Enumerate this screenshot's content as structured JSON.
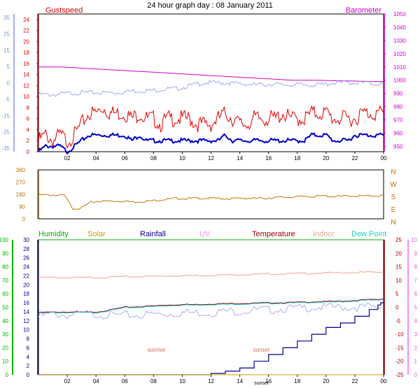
{
  "title": "24 hour graph day : 08 January 2011",
  "x_ticks": [
    "02",
    "04",
    "06",
    "08",
    "10",
    "12",
    "14",
    "16",
    "18",
    "20",
    "22",
    "00"
  ],
  "colors": {
    "gust": "#e00000",
    "wind": "#0000c8",
    "baro": "#cc00cc",
    "temp_outer": "#a0a8f0",
    "dir": "#c87800",
    "humidity": "#00b000",
    "solar": "#c8a000",
    "rainfall": "#00008c",
    "uv": "#ff88ff",
    "temperature": "#a00000",
    "indoor": "#f0a890",
    "dewpoint": "#20d0d0",
    "chill": "#a8b0f0",
    "grid": "#d0d0d0"
  },
  "chart_data": [
    {
      "type": "line",
      "panel": "wind-barometer",
      "legend": {
        "left": "Gustspeed",
        "right": "Barometer"
      },
      "left_axis_outer": {
        "ticks": [
          "35",
          "25",
          "15",
          "5",
          "0",
          "-5",
          "-15",
          "-25",
          "-35"
        ]
      },
      "left_axis_inner": {
        "ticks": [
          "24",
          "22",
          "20",
          "18",
          "16",
          "14",
          "12",
          "10",
          "8",
          "6",
          "4",
          "2",
          "0"
        ],
        "ylim": [
          0,
          25
        ]
      },
      "right_axis": {
        "ticks": [
          "1050",
          "1040",
          "1030",
          "1020",
          "1010",
          "1000",
          "990",
          "980",
          "970",
          "960",
          "950"
        ],
        "ylim": [
          946,
          1050
        ]
      },
      "series": [
        {
          "key": "gust",
          "values": [
            2,
            3,
            2,
            3,
            2,
            3,
            5,
            7,
            7,
            8,
            7,
            7,
            7,
            6,
            7,
            6,
            6,
            5,
            6,
            6,
            6,
            6,
            5,
            5,
            5,
            6,
            7,
            6,
            5,
            5,
            6,
            6,
            6,
            6,
            7,
            6,
            6,
            6,
            7,
            7,
            7,
            6,
            6,
            6,
            6,
            7,
            7,
            7,
            7
          ]
        },
        {
          "key": "wind",
          "values": [
            0,
            1,
            1,
            1,
            0,
            1,
            2,
            3,
            3,
            3,
            3,
            3,
            3,
            2,
            3,
            2,
            2,
            2,
            2,
            2,
            2,
            2,
            2,
            2,
            2,
            2,
            3,
            2,
            2,
            2,
            2,
            2,
            2,
            2,
            2,
            2,
            2,
            2,
            3,
            3,
            3,
            2,
            2,
            2,
            3,
            3,
            3,
            3,
            3
          ]
        },
        {
          "key": "baro",
          "values": [
            1010,
            1010,
            1010,
            1009.5,
            1009,
            1008.5,
            1008,
            1007.5,
            1007,
            1006.5,
            1006,
            1005.5,
            1005,
            1004.5,
            1004,
            1003.5,
            1003,
            1002.5,
            1002,
            1001.5,
            1001,
            1000.5,
            1000,
            1000,
            1000,
            999.8,
            999.6,
            999.4,
            999.2,
            999,
            999
          ]
        },
        {
          "key": "temp_outer",
          "values": [
            -6,
            -6,
            -6,
            -5.5,
            -5.2,
            -5,
            -5,
            -5,
            -5,
            -5,
            -4.5,
            -4,
            -4,
            -4,
            -3.5,
            -3,
            -3,
            -2,
            -1,
            0,
            0,
            0,
            0,
            -0.5,
            -0.5,
            -1,
            -1,
            -0.5,
            -1,
            -1,
            -1,
            -1,
            -1,
            -1,
            0,
            0,
            0,
            0,
            0,
            -0.5,
            -0.5
          ]
        }
      ]
    },
    {
      "type": "line",
      "panel": "wind-direction",
      "left_axis": {
        "ticks": [
          "360",
          "270",
          "180",
          "90",
          "0"
        ],
        "ylim": [
          0,
          360
        ]
      },
      "right_axis": {
        "ticks": [
          "N",
          "W",
          "S",
          "E",
          "N"
        ]
      },
      "series": [
        {
          "key": "dir",
          "values": [
            175,
            175,
            175,
            172,
            75,
            80,
            120,
            130,
            130,
            130,
            130,
            125,
            128,
            130,
            140,
            145,
            150,
            150,
            150,
            152,
            150,
            150,
            148,
            150,
            152,
            150,
            150,
            155,
            158,
            160,
            162,
            165,
            165,
            168,
            165,
            165,
            168,
            168,
            168,
            170,
            170
          ]
        }
      ]
    },
    {
      "type": "line",
      "panel": "multi",
      "legend": [
        "Humidity",
        "Solar",
        "Rainfall",
        "UV",
        "Temperature",
        "Indoor",
        "Dew Point"
      ],
      "humidity_axis": {
        "ticks": [
          "100",
          "90",
          "80",
          "70",
          "60",
          "50",
          "40",
          "30",
          "20",
          "10",
          "0"
        ],
        "ylim": [
          0,
          100
        ]
      },
      "rainfall_axis": {
        "ticks": [
          "30",
          "28",
          "26",
          "24",
          "22",
          "20",
          "18",
          "16",
          "14",
          "12",
          "10",
          "8",
          "6",
          "4",
          "2",
          "0"
        ],
        "ylim": [
          0,
          30
        ]
      },
      "temp_axis": {
        "ticks": [
          "25",
          "20",
          "15",
          "10",
          "5",
          "0",
          "-5",
          "-10",
          "-15",
          "-20",
          "-25"
        ],
        "ylim": [
          -25,
          25
        ]
      },
      "uv_axis": {
        "ticks": [
          "10",
          "9",
          "8",
          "7",
          "6",
          "5",
          "4",
          "3",
          "2",
          "1",
          "0"
        ],
        "ylim": [
          0,
          10
        ]
      },
      "annotations": [
        {
          "text": "sunrise",
          "x": 8.2
        },
        {
          "text": "sunset",
          "x": 15.5
        }
      ],
      "x_extra_label": "sunset",
      "series": [
        {
          "key": "humidity",
          "values": [
            100,
            100,
            100,
            100,
            100,
            100,
            100,
            100,
            100,
            100,
            100,
            100,
            100,
            100,
            100,
            100,
            100,
            100,
            100,
            100,
            100,
            100,
            100,
            100,
            100
          ]
        },
        {
          "key": "indoor",
          "values": [
            11,
            11,
            11,
            11,
            11,
            11.2,
            11.3,
            11.4,
            11.5,
            11.6,
            11.7,
            11.8,
            11.9,
            12,
            12.1,
            12.2,
            12.3,
            12.4,
            12.5,
            12.6,
            12.7,
            12.8,
            12.9,
            13,
            13
          ]
        },
        {
          "key": "temperature",
          "values": [
            -2,
            -1.8,
            -1.8,
            -1.8,
            -1.8,
            -1,
            0,
            0.2,
            0.5,
            0.8,
            1,
            1,
            1.2,
            1.3,
            1.4,
            1.5,
            1.6,
            1.7,
            1.8,
            2,
            2.1,
            2.2,
            2.5,
            2.8,
            3
          ]
        },
        {
          "key": "dewpoint",
          "values": [
            -2.2,
            -2,
            -2,
            -2,
            -2,
            -1.2,
            -0.2,
            0,
            0.3,
            0.6,
            0.8,
            0.8,
            1,
            1.1,
            1.2,
            1.3,
            1.4,
            1.5,
            1.6,
            1.8,
            1.9,
            2,
            2.3,
            2.6,
            2.8
          ]
        },
        {
          "key": "chill",
          "values": [
            -3.5,
            -2.5,
            -3,
            -2.5,
            -2.5,
            -3,
            -3,
            -3,
            -2.5,
            -2.5,
            -2,
            -2,
            -2,
            -1.5,
            -1.5,
            -1,
            -1,
            -0.5,
            -0.5,
            0,
            0,
            0,
            0,
            0,
            0
          ]
        },
        {
          "key": "rainfall",
          "x": [
            0,
            4,
            8,
            10,
            12,
            13,
            14,
            15,
            16,
            17,
            18,
            19,
            20,
            21,
            22,
            23,
            23.6,
            23.8,
            24
          ],
          "values": [
            0,
            0,
            0,
            0,
            0.3,
            0.8,
            1.5,
            3,
            4.5,
            6,
            7.5,
            9,
            10.5,
            11.5,
            13,
            14.5,
            15.5,
            16,
            16
          ]
        },
        {
          "key": "solar",
          "values": [
            0,
            0,
            0,
            0,
            0,
            0,
            0,
            0,
            0,
            0,
            0,
            0,
            0,
            0,
            0,
            0,
            0,
            0,
            0,
            0,
            0,
            0,
            0,
            0,
            0
          ]
        }
      ]
    }
  ]
}
